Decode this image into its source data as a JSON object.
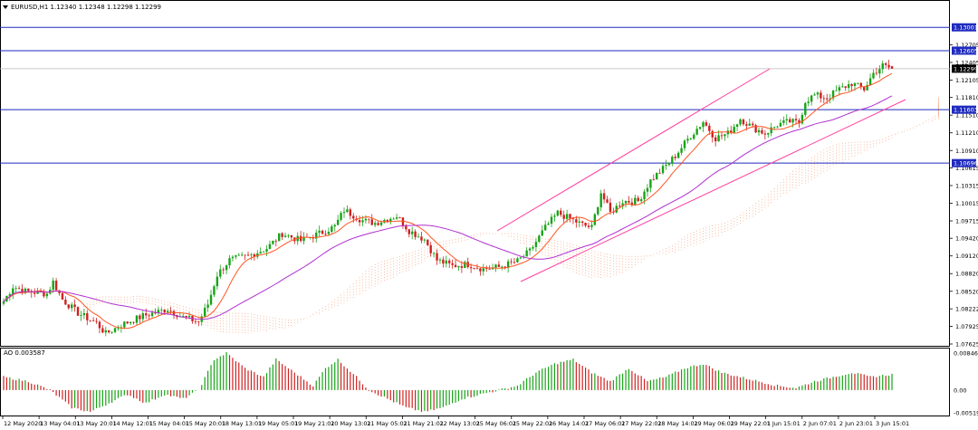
{
  "header": {
    "symbol_line": "EURUSD,H1  1.12340 1.12348 1.12298 1.12299",
    "ao_label": "AO 0.003587"
  },
  "price_axis": {
    "labels": [
      "1.12705",
      "1.12405",
      "1.12105",
      "1.11810",
      "1.11510",
      "1.11210",
      "1.10910",
      "1.10615",
      "1.10315",
      "1.10015",
      "1.09715",
      "1.09420",
      "1.09120",
      "1.08820",
      "1.08520",
      "1.08222",
      "1.07925",
      "1.07625"
    ],
    "current_price": "1.12299"
  },
  "h_lines": [
    {
      "label": "1.13001",
      "price": 1.13001
    },
    {
      "label": "1.12605",
      "price": 1.12605
    },
    {
      "label": "1.11603",
      "price": 1.11603
    },
    {
      "label": "1.10696",
      "price": 1.10696
    }
  ],
  "ao_axis": {
    "labels": [
      "0.008465",
      "0.00",
      "-0.005198"
    ]
  },
  "time_axis": {
    "labels": [
      "12 May 2020",
      "13 May 04:01",
      "13 May 20:01",
      "14 May 12:01",
      "15 May 04:01",
      "15 May 20:01",
      "18 May 13:01",
      "19 May 05:01",
      "19 May 21:01",
      "20 May 13:01",
      "21 May 05:01",
      "21 May 21:01",
      "22 May 13:01",
      "25 May 06:01",
      "25 May 22:01",
      "26 May 14:01",
      "27 May 06:01",
      "27 May 22:01",
      "28 May 14:01",
      "29 May 06:01",
      "29 May 22:01",
      "1 Jun 15:01",
      "2 Jun 07:01",
      "2 Jun 23:01",
      "3 Jun 15:01"
    ]
  },
  "colors": {
    "bull": "#17a317",
    "bear": "#cf2020",
    "hline": "#1f2bbf",
    "channel": "#ff3fa0",
    "ma_fast": "#ff5522",
    "ma_slow": "#b030d0",
    "cloud": "#f2a07a",
    "tag_bg": "#1f2bbf"
  },
  "chart_data": [
    {
      "type": "candlestick",
      "title": "EURUSD,H1",
      "ylim": [
        1.07625,
        1.1325
      ],
      "grid": false,
      "anchors": [
        [
          0,
          1.0835
        ],
        [
          3,
          1.086
        ],
        [
          7,
          1.0852
        ],
        [
          14,
          1.0848
        ],
        [
          16,
          1.0868
        ],
        [
          19,
          1.0838
        ],
        [
          24,
          1.0815
        ],
        [
          30,
          1.0798
        ],
        [
          33,
          1.078
        ],
        [
          38,
          1.0795
        ],
        [
          45,
          1.081
        ],
        [
          53,
          1.0822
        ],
        [
          58,
          1.0808
        ],
        [
          63,
          1.08
        ],
        [
          66,
          1.083
        ],
        [
          69,
          1.088
        ],
        [
          73,
          1.0905
        ],
        [
          79,
          1.0912
        ],
        [
          85,
          1.0925
        ],
        [
          90,
          1.095
        ],
        [
          96,
          1.0938
        ],
        [
          102,
          1.095
        ],
        [
          107,
          1.0962
        ],
        [
          110,
          1.099
        ],
        [
          116,
          1.0972
        ],
        [
          120,
          1.0968
        ],
        [
          124,
          1.0975
        ],
        [
          127,
          1.098
        ],
        [
          131,
          1.0955
        ],
        [
          136,
          1.094
        ],
        [
          140,
          1.0905
        ],
        [
          145,
          1.0895
        ],
        [
          150,
          1.0898
        ],
        [
          155,
          1.089
        ],
        [
          160,
          1.0893
        ],
        [
          166,
          1.0903
        ],
        [
          170,
          1.092
        ],
        [
          175,
          1.096
        ],
        [
          179,
          1.0985
        ],
        [
          183,
          1.0975
        ],
        [
          187,
          1.0965
        ],
        [
          190,
          1.096
        ],
        [
          193,
          1.102
        ],
        [
          196,
          1.0985
        ],
        [
          200,
          1.1005
        ],
        [
          205,
          1.1005
        ],
        [
          209,
          1.104
        ],
        [
          213,
          1.106
        ],
        [
          217,
          1.1082
        ],
        [
          221,
          1.111
        ],
        [
          226,
          1.114
        ],
        [
          230,
          1.1112
        ],
        [
          234,
          1.112
        ],
        [
          238,
          1.1145
        ],
        [
          242,
          1.113
        ],
        [
          246,
          1.112
        ],
        [
          250,
          1.1135
        ],
        [
          254,
          1.114
        ],
        [
          257,
          1.1138
        ],
        [
          259,
          1.1175
        ],
        [
          262,
          1.1185
        ],
        [
          266,
          1.118
        ],
        [
          270,
          1.1195
        ],
        [
          274,
          1.1205
        ],
        [
          278,
          1.1195
        ],
        [
          281,
          1.1222
        ],
        [
          284,
          1.1235
        ],
        [
          287,
          1.123
        ]
      ],
      "candles_count": 288,
      "last": {
        "open": 1.1234,
        "high": 1.12348,
        "low": 1.12298,
        "close": 1.12299
      }
    },
    {
      "type": "bar",
      "title": "AO",
      "ylim": [
        -0.005198,
        0.008465
      ],
      "anchors": [
        [
          0,
          0.003
        ],
        [
          8,
          0.002
        ],
        [
          15,
          0.0
        ],
        [
          22,
          -0.004
        ],
        [
          28,
          -0.005
        ],
        [
          34,
          -0.003
        ],
        [
          40,
          -0.001
        ],
        [
          46,
          -0.003
        ],
        [
          52,
          -0.001
        ],
        [
          58,
          -0.002
        ],
        [
          63,
          0.0
        ],
        [
          68,
          0.007
        ],
        [
          72,
          0.008465
        ],
        [
          78,
          0.005
        ],
        [
          84,
          0.003
        ],
        [
          88,
          0.007
        ],
        [
          94,
          0.004
        ],
        [
          100,
          0.001
        ],
        [
          104,
          0.005
        ],
        [
          108,
          0.007
        ],
        [
          114,
          0.003
        ],
        [
          118,
          0.0
        ],
        [
          124,
          -0.002
        ],
        [
          130,
          -0.004
        ],
        [
          136,
          -0.005
        ],
        [
          142,
          -0.004
        ],
        [
          148,
          -0.002
        ],
        [
          154,
          -0.001
        ],
        [
          160,
          0.0
        ],
        [
          166,
          0.001
        ],
        [
          172,
          0.004
        ],
        [
          178,
          0.006
        ],
        [
          184,
          0.007
        ],
        [
          190,
          0.004
        ],
        [
          196,
          0.002
        ],
        [
          202,
          0.005
        ],
        [
          208,
          0.002
        ],
        [
          214,
          0.003
        ],
        [
          220,
          0.005
        ],
        [
          226,
          0.006
        ],
        [
          232,
          0.004
        ],
        [
          238,
          0.003
        ],
        [
          244,
          0.002
        ],
        [
          250,
          0.001
        ],
        [
          256,
          0.0005
        ],
        [
          262,
          0.002
        ],
        [
          268,
          0.003
        ],
        [
          274,
          0.004
        ],
        [
          280,
          0.003
        ],
        [
          287,
          0.0036
        ]
      ],
      "value": 0.003587
    }
  ]
}
